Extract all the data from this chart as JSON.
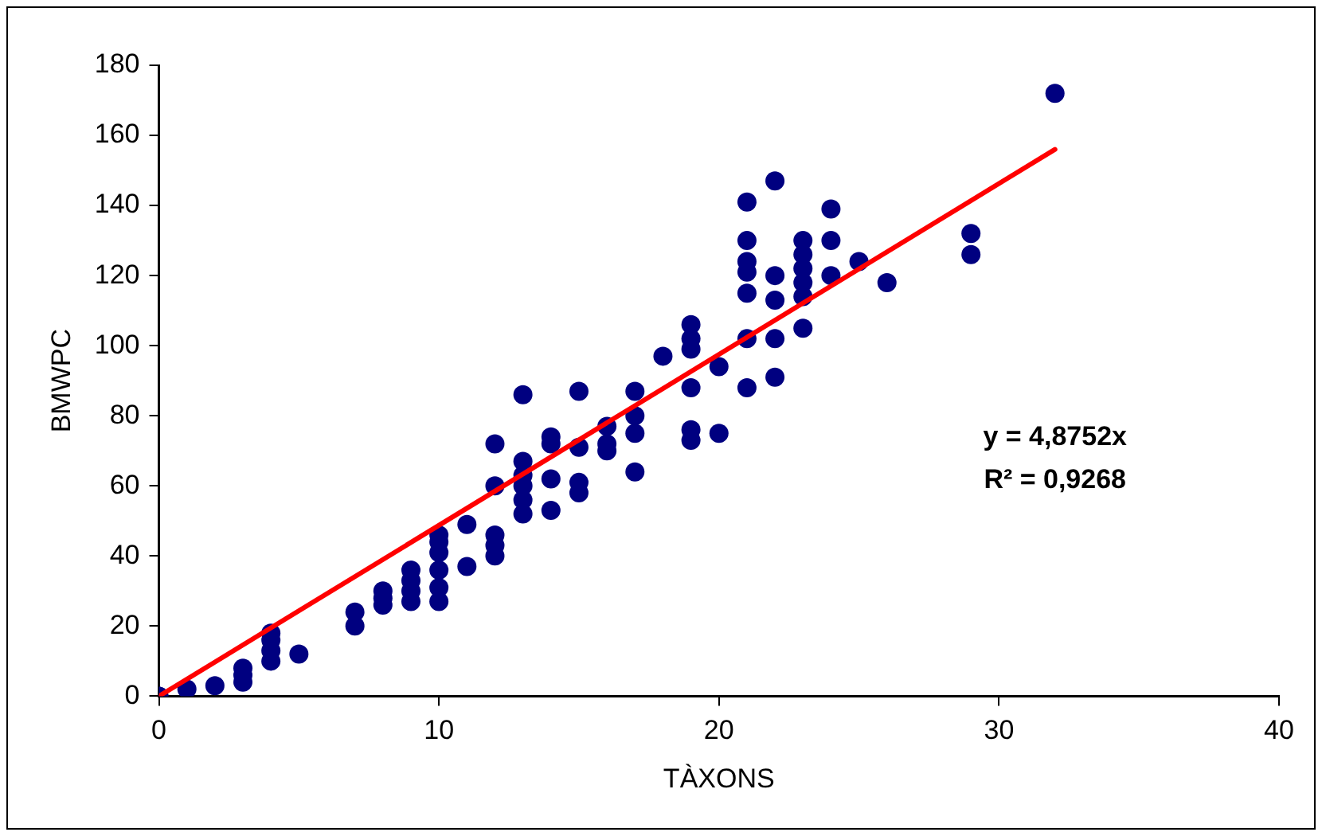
{
  "chart_data": {
    "type": "scatter",
    "xlabel": "TÀXONS",
    "ylabel": "BMWPC",
    "xlim": [
      0,
      40
    ],
    "xticks": [
      0,
      10,
      20,
      30,
      40
    ],
    "ylim": [
      0,
      180
    ],
    "yticks": [
      0,
      20,
      40,
      60,
      80,
      100,
      120,
      140,
      160,
      180
    ],
    "grid": false,
    "legend": false,
    "marker": "circle",
    "annotations": [
      "y = 4,8752x",
      "R² = 0,9268"
    ],
    "series": [
      {
        "color": "#000080",
        "x": [
          0,
          0,
          1,
          2,
          3,
          3,
          3,
          4,
          4,
          4,
          4,
          5,
          7,
          7,
          8,
          8,
          8,
          9,
          9,
          9,
          9,
          10,
          10,
          10,
          10,
          10,
          10,
          11,
          11,
          12,
          12,
          12,
          12,
          12,
          13,
          13,
          13,
          13,
          13,
          13,
          14,
          14,
          14,
          14,
          15,
          15,
          15,
          15,
          16,
          16,
          16,
          17,
          17,
          17,
          17,
          18,
          19,
          19,
          19,
          19,
          19,
          19,
          20,
          20,
          21,
          21,
          21,
          21,
          21,
          21,
          21,
          22,
          22,
          22,
          22,
          22,
          23,
          23,
          23,
          23,
          23,
          23,
          24,
          24,
          24,
          25,
          26,
          29,
          29,
          32
        ],
        "values": [
          0,
          0,
          2,
          3,
          4,
          6,
          8,
          10,
          13,
          16,
          18,
          12,
          20,
          24,
          26,
          28,
          30,
          27,
          30,
          33,
          36,
          27,
          31,
          36,
          41,
          44,
          46,
          37,
          49,
          40,
          43,
          46,
          60,
          72,
          52,
          56,
          60,
          63,
          67,
          86,
          53,
          62,
          72,
          74,
          58,
          61,
          71,
          87,
          70,
          72,
          77,
          64,
          75,
          80,
          87,
          97,
          73,
          76,
          88,
          99,
          102,
          106,
          75,
          94,
          88,
          102,
          115,
          121,
          124,
          130,
          141,
          91,
          102,
          113,
          120,
          147,
          105,
          114,
          118,
          122,
          126,
          130,
          120,
          130,
          139,
          124,
          118,
          126,
          132,
          172
        ]
      },
      {
        "type": "line",
        "color": "#ff0000",
        "line_style": "solid",
        "marker": "none",
        "x": [
          0,
          32
        ],
        "values": [
          0,
          156
        ]
      }
    ]
  }
}
